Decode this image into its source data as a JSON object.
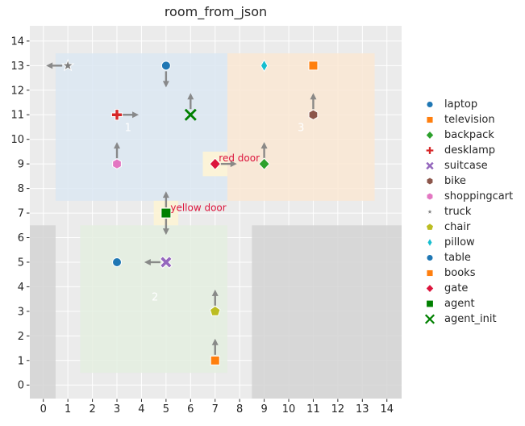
{
  "title": "room_from_json",
  "chart_data": {
    "type": "scatter",
    "title": "room_from_json",
    "xlim": [
      -0.55,
      14.6
    ],
    "ylim": [
      -0.55,
      14.62
    ],
    "xticks": [
      0,
      1,
      2,
      3,
      4,
      5,
      6,
      7,
      8,
      9,
      10,
      11,
      12,
      13,
      14
    ],
    "yticks": [
      0,
      1,
      2,
      3,
      4,
      5,
      6,
      7,
      8,
      9,
      10,
      11,
      12,
      13,
      14
    ],
    "grid": true,
    "legend_position": "right",
    "colors": {
      "figure_bg": "#ffffff",
      "plot_bg": "#ebebeb",
      "grid": "#ffffff",
      "wall": "#d4d4d4",
      "room_blue": "#dce7f2",
      "room_green": "#e4efe1",
      "room_orange": "#fae8d3",
      "door_highlight": "#fcf3d6",
      "door_label": "#dc143c",
      "room_label": "#ffffff",
      "arrow": "#7f7f7f",
      "tick_text": "#262626"
    },
    "regions": [
      {
        "name": "room-1",
        "x": [
          0.5,
          7.5
        ],
        "y": [
          7.5,
          13.5
        ],
        "color": "#dce7f2",
        "label": "1",
        "label_xy": [
          3.45,
          10.45
        ]
      },
      {
        "name": "room-2",
        "x": [
          1.5,
          7.5
        ],
        "y": [
          0.5,
          6.5
        ],
        "color": "#e4efe1",
        "label": "2",
        "label_xy": [
          4.55,
          3.55
        ]
      },
      {
        "name": "room-3",
        "x": [
          7.5,
          13.5
        ],
        "y": [
          7.5,
          13.5
        ],
        "color": "#fae8d3",
        "label": "3",
        "label_xy": [
          10.5,
          10.45
        ]
      },
      {
        "name": "wall-left",
        "x": [
          -0.55,
          0.5
        ],
        "y": [
          -0.55,
          6.5
        ],
        "color": "#d4d4d4",
        "label": null,
        "label_xy": null
      },
      {
        "name": "wall-right",
        "x": [
          8.5,
          14.6
        ],
        "y": [
          -0.55,
          6.5
        ],
        "color": "#d4d4d4",
        "label": null,
        "label_xy": null
      }
    ],
    "door_highlights": [
      {
        "name": "red-door-cell",
        "x": [
          6.5,
          7.5
        ],
        "y": [
          8.5,
          9.5
        ],
        "color": "#fcf3d6"
      },
      {
        "name": "yellow-door-cell",
        "x": [
          4.5,
          5.5
        ],
        "y": [
          6.5,
          7.5
        ],
        "color": "#fcf3d6"
      }
    ],
    "door_labels": [
      {
        "name": "red-door-label",
        "text": "red door",
        "xy": [
          7.15,
          9.1
        ],
        "color": "#dc143c"
      },
      {
        "name": "yellow-door-label",
        "text": "yellow door",
        "xy": [
          5.18,
          7.08
        ],
        "color": "#dc143c"
      }
    ],
    "points": [
      {
        "label": "laptop",
        "x": 5,
        "y": 13,
        "marker": "circle",
        "color": "#1f77b4",
        "arrow": "down"
      },
      {
        "label": "television",
        "x": 11,
        "y": 13,
        "marker": "square",
        "color": "#ff7f0e",
        "arrow": null
      },
      {
        "label": "backpack",
        "x": 9,
        "y": 9,
        "marker": "diamond",
        "color": "#2ca02c",
        "arrow": "up"
      },
      {
        "label": "desklamp",
        "x": 3,
        "y": 11,
        "marker": "plus",
        "color": "#d62728",
        "arrow": "right"
      },
      {
        "label": "suitcase",
        "x": 5,
        "y": 5,
        "marker": "x-filled",
        "color": "#9467bd",
        "arrow": "left"
      },
      {
        "label": "bike",
        "x": 11,
        "y": 11,
        "marker": "hexagon",
        "color": "#8c564b",
        "arrow": "up"
      },
      {
        "label": "shoppingcart",
        "x": 3,
        "y": 9,
        "marker": "hexagon",
        "color": "#e377c2",
        "arrow": "up"
      },
      {
        "label": "truck",
        "x": 1,
        "y": 13,
        "marker": "star",
        "color": "#7f7f7f",
        "arrow": "left"
      },
      {
        "label": "chair",
        "x": 7,
        "y": 3,
        "marker": "pentagon",
        "color": "#bcbd22",
        "arrow": "up"
      },
      {
        "label": "pillow",
        "x": 9,
        "y": 13,
        "marker": "thin-diamond",
        "color": "#17becf",
        "arrow": null
      },
      {
        "label": "table",
        "x": 3,
        "y": 5,
        "marker": "circle",
        "color": "#1f77b4",
        "arrow": null
      },
      {
        "label": "books",
        "x": 7,
        "y": 1,
        "marker": "square",
        "color": "#ff7f0e",
        "arrow": "up"
      },
      {
        "label": "gate",
        "x": 7,
        "y": 9,
        "marker": "diamond",
        "color": "#dc143c",
        "arrow": "right"
      },
      {
        "label": "agent",
        "x": 5,
        "y": 7,
        "marker": "square-big",
        "color": "#008000",
        "arrow": "up-down"
      },
      {
        "label": "agent_init",
        "x": 6,
        "y": 11,
        "marker": "x-stroke",
        "color": "#008000",
        "arrow": "up"
      }
    ]
  }
}
